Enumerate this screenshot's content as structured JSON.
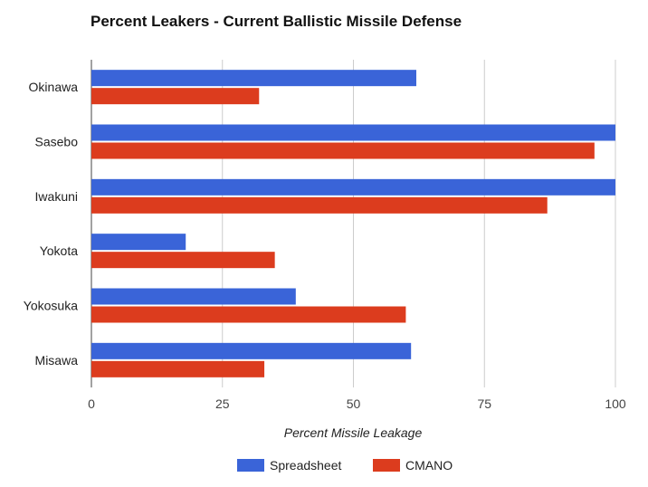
{
  "chart_data": {
    "type": "bar",
    "orientation": "horizontal",
    "title": "Percent Leakers - Current Ballistic Missile Defense",
    "xlabel": "Percent Missile Leakage",
    "ylabel": "",
    "categories": [
      "Okinawa",
      "Sasebo",
      "Iwakuni",
      "Yokota",
      "Yokosuka",
      "Misawa"
    ],
    "series": [
      {
        "name": "Spreadsheet",
        "color": "#3a64d8",
        "values": [
          62,
          100,
          100,
          18,
          39,
          61
        ]
      },
      {
        "name": "CMANO",
        "color": "#dc3c1e",
        "values": [
          32,
          96,
          87,
          35,
          60,
          33
        ]
      }
    ],
    "xlim": [
      0,
      100
    ],
    "xticks": [
      "0",
      "25",
      "50",
      "75",
      "100"
    ],
    "grid": true,
    "legend_position": "bottom"
  }
}
